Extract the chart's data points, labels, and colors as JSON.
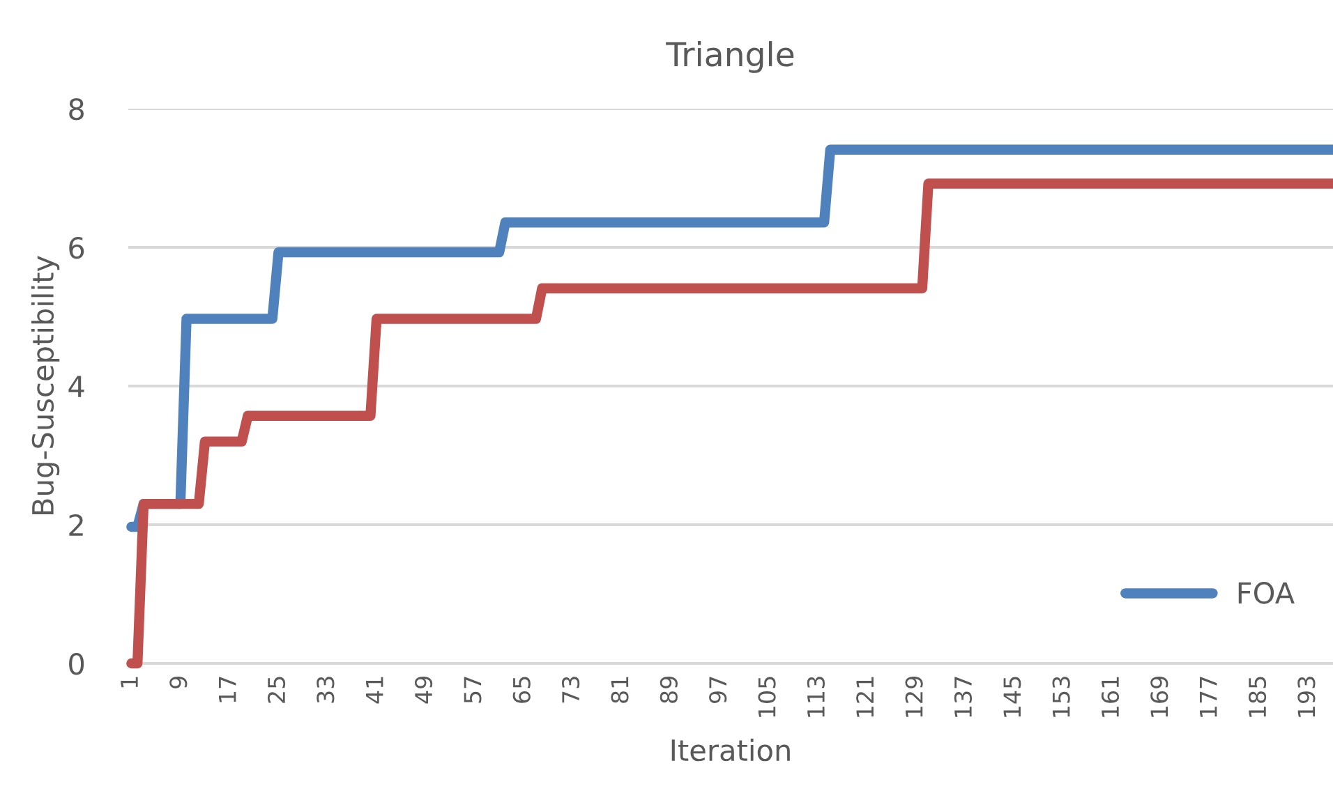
{
  "chart_data": {
    "type": "line",
    "title": "Triangle",
    "xlabel": "Iteration",
    "ylabel": "Bug-Susceptibility",
    "xlim": [
      0.5,
      197
    ],
    "xticks": [
      1,
      9,
      17,
      25,
      33,
      41,
      49,
      57,
      65,
      73,
      81,
      89,
      97,
      105,
      113,
      121,
      129,
      137,
      145,
      153,
      161,
      169,
      177,
      185,
      193
    ],
    "ylim": [
      0,
      8
    ],
    "yticks": [
      0,
      2,
      4,
      6,
      8
    ],
    "grid": "y",
    "legend": "bottom right",
    "marker": "none",
    "line_style": "solid",
    "series": [
      {
        "name": "FOA",
        "color": "#4f81bd",
        "x": [
          1,
          2,
          3,
          9,
          10,
          24,
          25,
          61,
          62,
          114,
          115,
          197
        ],
        "values": [
          1.97,
          1.97,
          2.3,
          2.3,
          4.97,
          4.97,
          5.93,
          5.93,
          6.36,
          6.36,
          7.41,
          7.41
        ]
      },
      {
        "color": "#c0504d",
        "x": [
          1,
          2,
          3,
          12,
          13,
          19,
          20,
          40,
          41,
          67,
          68,
          130,
          131,
          197
        ],
        "values": [
          0,
          0,
          2.3,
          2.3,
          3.2,
          3.2,
          3.57,
          3.57,
          4.97,
          4.97,
          5.41,
          5.41,
          6.92,
          6.92
        ]
      }
    ]
  }
}
